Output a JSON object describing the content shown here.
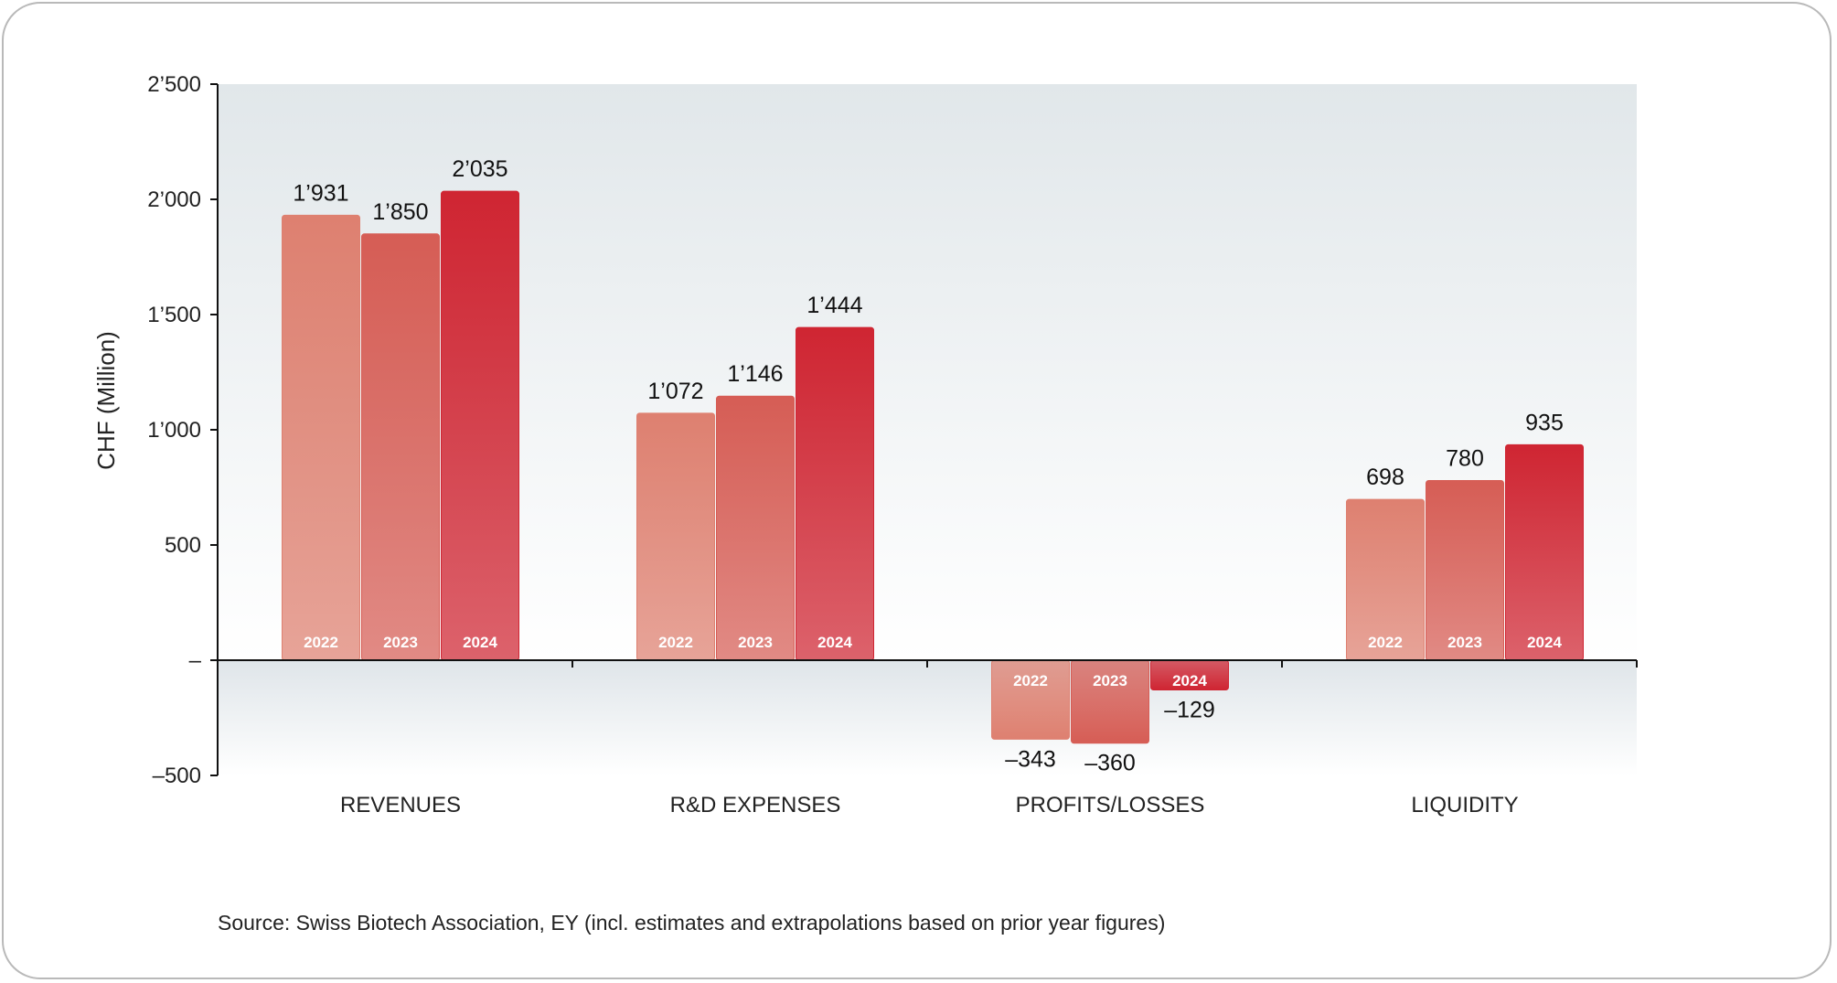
{
  "chart_data": {
    "type": "bar",
    "ylabel": "CHF (Million)",
    "ylim": [
      -500,
      2500
    ],
    "yticks": [
      {
        "value": 2500,
        "label": "2’500"
      },
      {
        "value": 2000,
        "label": "2’000"
      },
      {
        "value": 1500,
        "label": "1’500"
      },
      {
        "value": 1000,
        "label": "1’000"
      },
      {
        "value": 500,
        "label": "500"
      },
      {
        "value": 0,
        "label": "–"
      },
      {
        "value": -500,
        "label": "–500"
      }
    ],
    "categories": [
      "REVENUES",
      "R&D EXPENSES",
      "PROFITS/LOSSES",
      "LIQUIDITY"
    ],
    "series": [
      {
        "name": "2022",
        "values": [
          1931,
          1072,
          -343,
          698
        ],
        "labels": [
          "1’931",
          "1’072",
          "–343",
          "698"
        ]
      },
      {
        "name": "2023",
        "values": [
          1850,
          1146,
          -360,
          780
        ],
        "labels": [
          "1’850",
          "1’146",
          "–360",
          "780"
        ]
      },
      {
        "name": "2024",
        "values": [
          2035,
          1444,
          -129,
          935
        ],
        "labels": [
          "2’035",
          "1’444",
          "–129",
          "935"
        ]
      }
    ],
    "colors": [
      "#de8070",
      "#d65d55",
      "#cf2532"
    ],
    "grid": false
  },
  "source": "Source: Swiss Biotech Association, EY (incl. estimates and extrapolations based on prior year figures)"
}
